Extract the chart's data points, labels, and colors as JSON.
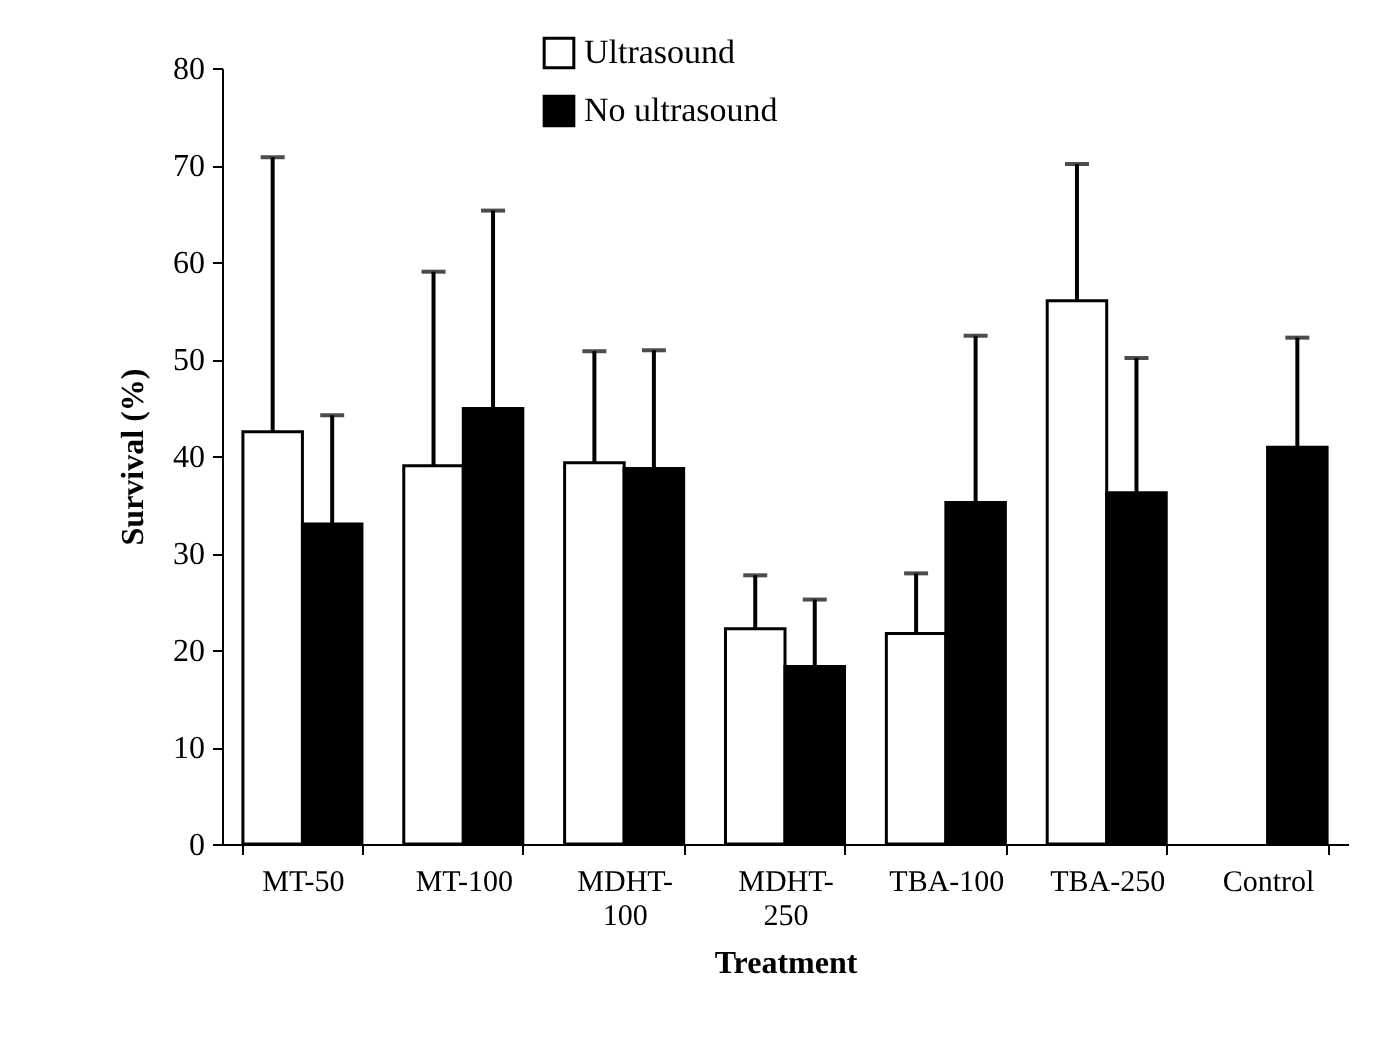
{
  "chart_data": {
    "type": "bar",
    "xlabel": "Treatment",
    "ylabel": "Survival (%)",
    "categories": [
      "MT-50",
      "MT-100",
      "MDHT-100",
      "MDHT-250",
      "TBA-100",
      "TBA-250",
      "Control"
    ],
    "series": [
      {
        "name": "Ultrasound",
        "color": "#ffffff",
        "values": [
          42.5,
          39.0,
          39.3,
          22.2,
          21.7,
          56.0,
          null
        ],
        "errors": [
          [
            42.5,
            70.8
          ],
          [
            39.0,
            59.0
          ],
          [
            39.3,
            50.8
          ],
          [
            22.2,
            27.7
          ],
          [
            21.7,
            27.9
          ],
          [
            56.0,
            70.1
          ],
          null
        ]
      },
      {
        "name": "No ultrasound",
        "color": "#000000",
        "values": [
          33.0,
          44.9,
          38.7,
          18.3,
          35.2,
          36.2,
          40.9
        ],
        "errors": [
          [
            33.0,
            44.2
          ],
          [
            44.9,
            65.3
          ],
          [
            38.7,
            50.9
          ],
          [
            18.3,
            25.2
          ],
          [
            35.2,
            52.4
          ],
          [
            36.2,
            50.1
          ],
          [
            40.9,
            52.2
          ]
        ]
      }
    ],
    "ylim": [
      0,
      80
    ],
    "yticks": [
      0,
      10,
      20,
      30,
      40,
      50,
      60,
      70,
      80
    ],
    "grid": false,
    "legend": "top"
  }
}
